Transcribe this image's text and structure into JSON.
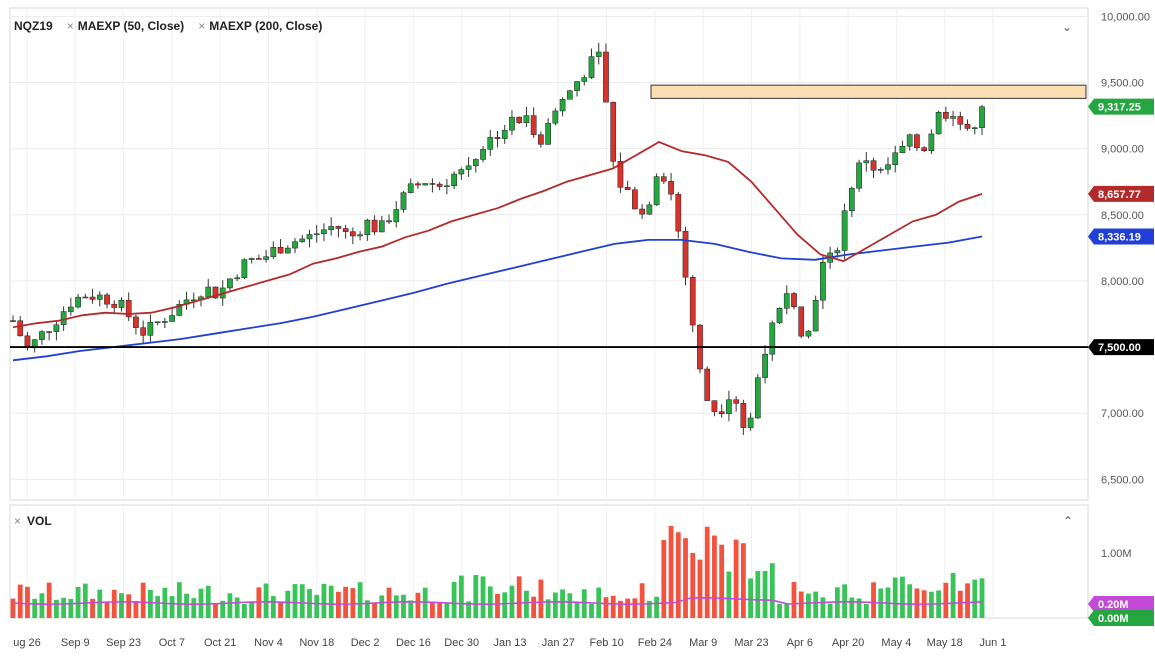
{
  "legend": {
    "symbol": "NQZ19",
    "ma50_label": "MAEXP (50, Close)",
    "ma200_label": "MAEXP (200, Close)",
    "vol_label": "VOL",
    "close_glyph": "×",
    "collapse_icon": "chevron-down-icon",
    "expand_icon": "chevron-up-icon"
  },
  "colors": {
    "up": "#26a641",
    "down": "#d5332c",
    "vol_up": "#39c45a",
    "vol_down": "#f2523e",
    "ma50": "#b32a2a",
    "ma200": "#1f3fd6",
    "vol_ma": "#c34ad6",
    "level_line": "#000000",
    "zone_fill": "#f9dfb1"
  },
  "chart_data": [
    {
      "type": "candlestick",
      "y_ticks": [
        "10,000.00",
        "9,500.00",
        "9,000.00",
        "8,500.00",
        "8,000.00",
        "7,500.00",
        "7,000.00",
        "6,500.00"
      ],
      "y_tick_values": [
        10000,
        9500,
        9000,
        8500,
        8000,
        7500,
        7000,
        6500
      ],
      "ylim": [
        6350,
        10050
      ],
      "x_ticks": [
        "ug 26",
        "Sep 9",
        "Sep 23",
        "Oct 7",
        "Oct 21",
        "Nov 4",
        "Nov 18",
        "Dec 2",
        "Dec 16",
        "Dec 30",
        "Jan 13",
        "Jan 27",
        "Feb 10",
        "Feb 24",
        "Mar 9",
        "Mar 23",
        "Apr 6",
        "Apr 20",
        "May 4",
        "May 18",
        "Jun 1"
      ],
      "price_labels": {
        "last": "9,317.25",
        "ma50": "8,657.77",
        "ma200": "8,336.19",
        "level": "7,500.00"
      },
      "horizontal_level": 7500,
      "resistance_zone": [
        9380,
        9480
      ],
      "close_path": [
        7700,
        7480,
        7600,
        7720,
        7850,
        7900,
        7880,
        7850,
        7720,
        7600,
        7700,
        7780,
        7880,
        7950,
        7900,
        8050,
        8150,
        8170,
        8250,
        8300,
        8320,
        8380,
        8420,
        8320,
        8450,
        8380,
        8550,
        8680,
        8760,
        8720,
        8800,
        8880,
        9020,
        9120,
        9200,
        9220,
        9080,
        9300,
        9450,
        9600,
        9700,
        8780,
        8650,
        8480,
        8900,
        8600,
        7900,
        7150,
        7000,
        7200,
        6800,
        7450,
        7700,
        7950,
        7500,
        8100,
        8200,
        8700,
        8950,
        8800,
        8920,
        9050,
        9000,
        9250,
        9300,
        9100,
        9317.25
      ],
      "ma50_path": [
        7650,
        7680,
        7700,
        7740,
        7760,
        7750,
        7760,
        7800,
        7850,
        7900,
        7950,
        8000,
        8050,
        8130,
        8170,
        8220,
        8260,
        8330,
        8380,
        8450,
        8500,
        8550,
        8620,
        8680,
        8750,
        8800,
        8850,
        8950,
        9050,
        8980,
        8950,
        8900,
        8750,
        8550,
        8350,
        8200,
        8150,
        8250,
        8350,
        8450,
        8500,
        8600,
        8657.77
      ],
      "ma200_path": [
        7400,
        7430,
        7470,
        7500,
        7530,
        7560,
        7600,
        7640,
        7680,
        7730,
        7790,
        7850,
        7910,
        7980,
        8040,
        8100,
        8160,
        8220,
        8280,
        8310,
        8310,
        8280,
        8220,
        8170,
        8160,
        8200,
        8230,
        8260,
        8290,
        8336.19
      ]
    },
    {
      "type": "bar",
      "title": "VOL",
      "y_ticks": [
        "1.00M"
      ],
      "price_labels": {
        "vol_ma": "0.20M",
        "vol_last": "0.00M"
      }
    }
  ]
}
